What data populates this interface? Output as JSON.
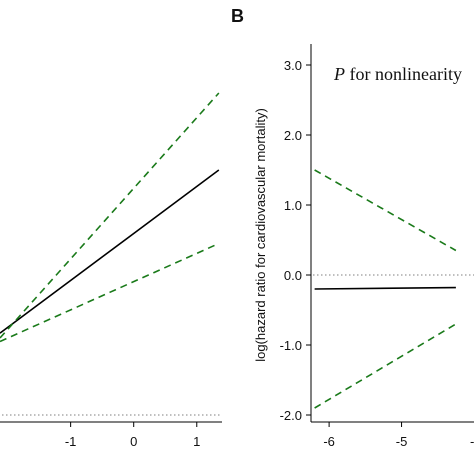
{
  "chart_data": [
    {
      "panel": "A",
      "type": "line",
      "panel_label": "",
      "xlabel": "",
      "ylabel": "",
      "xlim": [
        -2.12,
        1.4
      ],
      "ylim": [
        -2.1,
        3.3
      ],
      "xticks": [
        -1,
        0,
        1
      ],
      "xtick_labels": [
        "-1",
        "0",
        "1"
      ],
      "reference_line": {
        "y": -2.0,
        "style": "dotted",
        "color": "#999999"
      },
      "series": [
        {
          "role": "estimate",
          "x": [
            -2.12,
            1.35
          ],
          "y": [
            -0.83,
            1.5
          ],
          "color": "#000000",
          "dash": "solid"
        },
        {
          "role": "upper-ci",
          "x": [
            -2.12,
            1.35
          ],
          "y": [
            -0.9,
            2.6
          ],
          "color": "#1a7a1a",
          "dash": "dashed"
        },
        {
          "role": "lower-ci",
          "x": [
            -2.12,
            1.35
          ],
          "y": [
            -0.95,
            0.45
          ],
          "color": "#1a7a1a",
          "dash": "dashed"
        }
      ]
    },
    {
      "panel": "B",
      "type": "line",
      "panel_label": "B",
      "annotation_italic": "P",
      "annotation_rest": " for nonlinearity",
      "xlabel": "",
      "ylabel": "log(hazard ratio for cardiovascular mortality)",
      "xlim": [
        -6.25,
        -4.0
      ],
      "ylim": [
        -2.1,
        3.3
      ],
      "xticks": [
        -6,
        -5
      ],
      "xtick_labels": [
        "-6",
        "-5"
      ],
      "yticks": [
        3.0,
        2.0,
        1.0,
        0.0,
        -1.0,
        -2.0
      ],
      "ytick_labels": [
        "3.0",
        "2.0",
        "1.0",
        "0.0",
        "-1.0",
        "-2.0"
      ],
      "reference_line": {
        "y": 0.0,
        "style": "dotted",
        "color": "#999999"
      },
      "series": [
        {
          "role": "estimate",
          "x": [
            -6.2,
            -4.25
          ],
          "y": [
            -0.2,
            -0.18
          ],
          "color": "#000000",
          "dash": "solid"
        },
        {
          "role": "upper-ci",
          "x": [
            -6.2,
            -4.25
          ],
          "y": [
            1.5,
            0.35
          ],
          "color": "#1a7a1a",
          "dash": "dashed"
        },
        {
          "role": "lower-ci",
          "x": [
            -6.2,
            -4.25
          ],
          "y": [
            -1.9,
            -0.7
          ],
          "color": "#1a7a1a",
          "dash": "dashed"
        }
      ]
    }
  ],
  "partial_labels": {
    "cut_tick_left": "-"
  }
}
